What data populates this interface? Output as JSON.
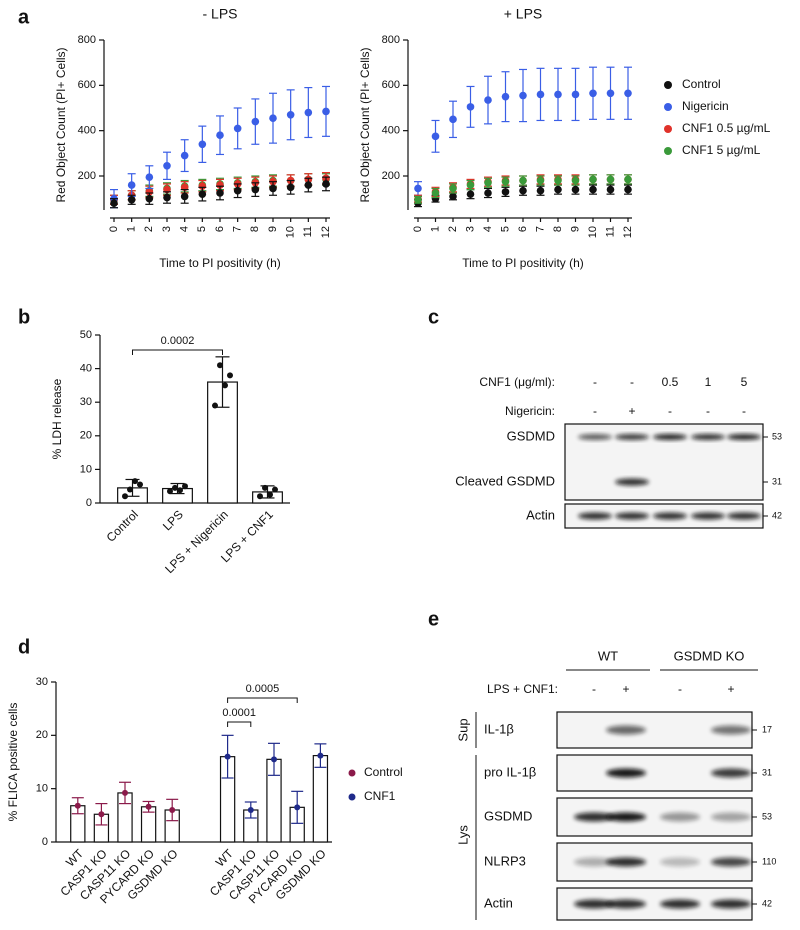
{
  "panel_labels": [
    "a",
    "b",
    "c",
    "d",
    "e"
  ],
  "chart_data": [
    {
      "type": "scatter",
      "title": "- LPS",
      "x_label": "Time to PI positivity (h)",
      "y_label": "Red Object Count (PI+ Cells)",
      "x": [
        0,
        1,
        2,
        3,
        4,
        5,
        6,
        7,
        8,
        9,
        10,
        11,
        12
      ],
      "xlim": [
        0,
        12
      ],
      "xticks": [
        0,
        1,
        2,
        3,
        4,
        5,
        6,
        7,
        8,
        9,
        10,
        11,
        12
      ],
      "ylim": [
        50,
        800
      ],
      "yticks": [
        200,
        400,
        600,
        800
      ],
      "series": [
        {
          "color": "#3a9a3a",
          "values": [
            95,
            115,
            135,
            145,
            155,
            160,
            165,
            170,
            175,
            180,
            180,
            185,
            185
          ],
          "errors": [
            20,
            20,
            25,
            25,
            25,
            25,
            25,
            25,
            25,
            25,
            25,
            25,
            25
          ]
        },
        {
          "color": "#e0322a",
          "values": [
            95,
            115,
            130,
            140,
            150,
            155,
            160,
            165,
            170,
            175,
            180,
            185,
            190
          ],
          "errors": [
            20,
            20,
            25,
            25,
            25,
            25,
            25,
            25,
            25,
            25,
            25,
            25,
            25
          ]
        },
        {
          "color": "#3a5ee6",
          "values": [
            100,
            160,
            195,
            245,
            290,
            340,
            380,
            410,
            440,
            455,
            470,
            480,
            485
          ],
          "errors": [
            40,
            50,
            50,
            60,
            70,
            80,
            85,
            90,
            100,
            110,
            110,
            110,
            110
          ]
        },
        {
          "color": "#111111",
          "values": [
            80,
            95,
            100,
            105,
            110,
            120,
            125,
            135,
            140,
            145,
            150,
            160,
            165
          ],
          "errors": [
            20,
            20,
            25,
            25,
            30,
            30,
            30,
            30,
            30,
            30,
            30,
            30,
            30
          ]
        }
      ]
    },
    {
      "type": "scatter",
      "title": "+ LPS",
      "x_label": "Time to PI positivity (h)",
      "y_label": "Red Object Count (PI+ Cells)",
      "x": [
        0,
        1,
        2,
        3,
        4,
        5,
        6,
        7,
        8,
        9,
        10,
        11,
        12
      ],
      "xlim": [
        0,
        12
      ],
      "xticks": [
        0,
        1,
        2,
        3,
        4,
        5,
        6,
        7,
        8,
        9,
        10,
        11,
        12
      ],
      "ylim": [
        50,
        800
      ],
      "yticks": [
        200,
        400,
        600,
        800
      ],
      "legend": "right",
      "series": [
        {
          "name": "Control",
          "color": "#111111",
          "values": [
            80,
            100,
            110,
            120,
            125,
            130,
            135,
            135,
            140,
            140,
            140,
            140,
            140
          ],
          "errors": [
            15,
            15,
            15,
            20,
            20,
            20,
            20,
            20,
            20,
            20,
            20,
            20,
            20
          ]
        },
        {
          "name": "Nigericin",
          "color": "#3a5ee6",
          "values": [
            145,
            375,
            450,
            505,
            535,
            550,
            555,
            560,
            560,
            560,
            565,
            565,
            565
          ],
          "errors": [
            30,
            70,
            80,
            90,
            105,
            110,
            115,
            115,
            115,
            115,
            115,
            115,
            115
          ]
        },
        {
          "name": "CNF1 0.5 µg/mL",
          "color": "#e0322a",
          "values": [
            100,
            130,
            150,
            165,
            175,
            180,
            180,
            185,
            185,
            185,
            185,
            185,
            185
          ],
          "errors": [
            15,
            20,
            20,
            20,
            20,
            20,
            20,
            20,
            20,
            20,
            20,
            20,
            20
          ]
        },
        {
          "name": "CNF1 5 µg/mL",
          "color": "#3a9a3a",
          "values": [
            95,
            125,
            145,
            160,
            170,
            175,
            180,
            180,
            180,
            180,
            185,
            185,
            185
          ],
          "errors": [
            15,
            20,
            20,
            20,
            20,
            20,
            20,
            20,
            20,
            20,
            20,
            20,
            20
          ]
        }
      ]
    },
    {
      "type": "bar",
      "y_label": "% LDH release",
      "categories": [
        "Control",
        "LPS",
        "LPS + Nigericin",
        "LPS + CNF1"
      ],
      "values": [
        4.5,
        4.3,
        36,
        3.3
      ],
      "errors": [
        2.5,
        1.5,
        7.5,
        1.8
      ],
      "points": [
        [
          2,
          4,
          6.5,
          5.5
        ],
        [
          3.5,
          4.5,
          3.8,
          5
        ],
        [
          29,
          41,
          35,
          38
        ],
        [
          2,
          4.5,
          2.5,
          4
        ]
      ],
      "ylim": [
        0,
        50
      ],
      "yticks": [
        0,
        10,
        20,
        30,
        40,
        50
      ],
      "annotations": [
        "0.0002"
      ]
    },
    {
      "type": "grouped_bar",
      "y_label": "% FLICA positive cells",
      "categories": [
        "WT",
        "CASP1 KO",
        "CASP11 KO",
        "PYCARD KO",
        "GSDMD KO"
      ],
      "series": [
        {
          "name": "Control",
          "color": "#8b1a4a",
          "values": [
            6.8,
            5.2,
            9.2,
            6.6,
            6
          ],
          "errors": [
            1.5,
            2,
            2,
            1,
            2
          ]
        },
        {
          "name": "CNF1",
          "color": "#1f2a8a",
          "values": [
            16,
            6,
            15.5,
            6.5,
            16.2
          ],
          "errors": [
            4,
            1.5,
            3,
            3,
            2.2
          ]
        }
      ],
      "ylim": [
        0,
        30
      ],
      "yticks": [
        0,
        10,
        20,
        30
      ],
      "annotations": [
        "0.0001",
        "0.0005"
      ],
      "legend": "right"
    }
  ],
  "blot_c": {
    "header": [
      {
        "label": "CNF1 (μg/ml):",
        "lanes": [
          "-",
          "-",
          "0.5",
          "1",
          "5"
        ]
      },
      {
        "label": "Nigericin:",
        "lanes": [
          "-",
          "+",
          "-",
          "-",
          "-"
        ]
      }
    ],
    "bands": [
      {
        "label": "GSDMD",
        "size": 53
      },
      {
        "label": "Cleaved GSDMD",
        "size": 31
      },
      {
        "label": "Actin",
        "size": 42
      }
    ]
  },
  "blot_e": {
    "groups": [
      "WT",
      "GSDMD KO"
    ],
    "treatment": {
      "label": "LPS + CNF1:",
      "lanes": [
        "-",
        "+",
        "-",
        "+"
      ]
    },
    "sections": [
      "Sup",
      "Lys"
    ],
    "bands": [
      {
        "label": "IL-1β",
        "size": 17
      },
      {
        "label": "pro IL-1β",
        "size": 31
      },
      {
        "label": "GSDMD",
        "size": 53
      },
      {
        "label": "NLRP3",
        "size": 110
      },
      {
        "label": "Actin",
        "size": 42
      }
    ]
  }
}
